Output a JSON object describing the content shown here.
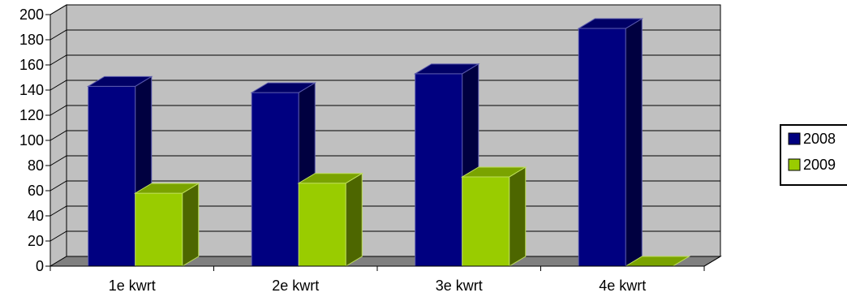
{
  "chart_data": {
    "type": "bar",
    "categories": [
      "1e kwrt",
      "2e kwrt",
      "3e kwrt",
      "4e kwrt"
    ],
    "series": [
      {
        "name": "2008",
        "values": [
          143,
          138,
          153,
          189
        ]
      },
      {
        "name": "2009",
        "values": [
          58,
          66,
          71,
          0
        ]
      }
    ],
    "ylim": [
      0,
      200
    ],
    "yticks": [
      0,
      20,
      40,
      60,
      80,
      100,
      120,
      140,
      160,
      180,
      200
    ],
    "grid": true,
    "legend_position": "right",
    "colors": {
      "series_2008": "#000080",
      "series_2009": "#99cc00",
      "wall": "#c0c0c0",
      "floor": "#808080"
    }
  }
}
